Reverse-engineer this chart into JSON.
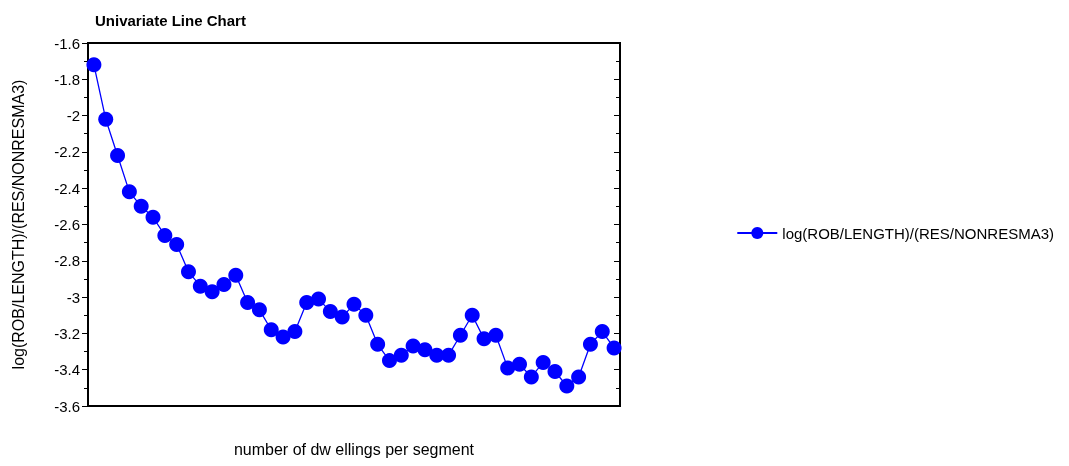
{
  "chart_data": {
    "type": "line",
    "title": "Univariate Line Chart",
    "xlabel": "number of dw ellings per segment",
    "ylabel": "log(ROB/LENGTH)/(RES/NONRESMA3)",
    "categories": [
      null,
      null,
      null,
      null,
      null,
      null,
      null,
      null,
      null,
      null,
      null,
      null,
      null,
      null,
      null,
      null,
      null,
      null,
      null,
      null,
      null,
      null,
      null,
      null,
      null,
      null,
      null,
      null,
      null,
      null,
      null,
      null,
      null,
      null,
      null,
      null,
      null,
      null,
      null,
      null,
      null,
      null,
      null,
      null,
      null
    ],
    "series": [
      {
        "name": "log(ROB/LENGTH)/(RES/NONRESMA3)",
        "color": "#0000ff",
        "values": [
          -1.72,
          -2.02,
          -2.22,
          -2.42,
          -2.5,
          -2.56,
          -2.66,
          -2.71,
          -2.86,
          -2.94,
          -2.97,
          -2.93,
          -2.88,
          -3.03,
          -3.07,
          -3.18,
          -3.22,
          -3.19,
          -3.03,
          -3.01,
          -3.08,
          -3.11,
          -3.04,
          -3.1,
          -3.26,
          -3.35,
          -3.32,
          -3.27,
          -3.29,
          -3.32,
          -3.32,
          -3.21,
          -3.1,
          -3.23,
          -3.21,
          -3.39,
          -3.37,
          -3.44,
          -3.36,
          -3.41,
          -3.49,
          -3.44,
          -3.26,
          -3.19,
          -3.28
        ]
      }
    ],
    "ylim": [
      -3.6,
      -1.6
    ],
    "yticks": [
      -3.6,
      -3.4,
      -3.2,
      -3,
      -2.8,
      -2.6,
      -2.4,
      -2.2,
      -2,
      -1.8,
      -1.6
    ],
    "tick_labels": "y",
    "grid": false,
    "legend": "right",
    "marker": "circle",
    "line_style": "solid"
  }
}
